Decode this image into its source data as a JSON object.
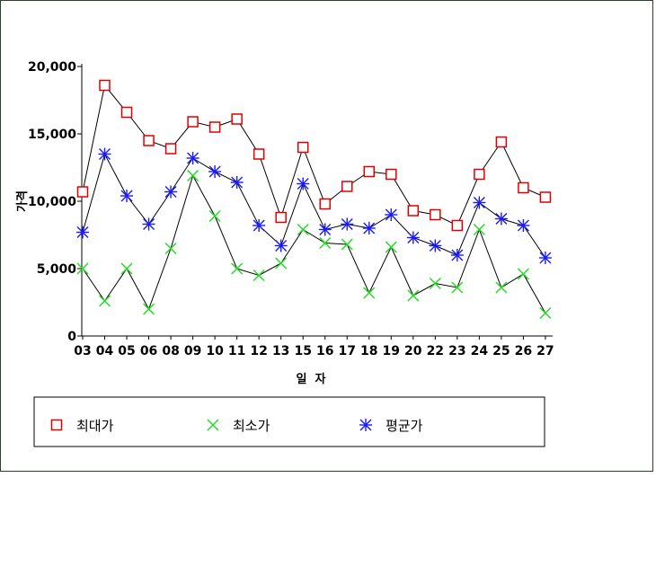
{
  "chart_data": {
    "type": "line",
    "title": "",
    "xlabel": "일  자",
    "ylabel": "가격",
    "categories": [
      "03",
      "04",
      "05",
      "06",
      "08",
      "09",
      "10",
      "11",
      "12",
      "13",
      "15",
      "16",
      "17",
      "18",
      "19",
      "20",
      "22",
      "23",
      "24",
      "25",
      "26",
      "27"
    ],
    "ylim": [
      0,
      20000
    ],
    "yticks": [
      "0",
      "5,000",
      "10,000",
      "15,000",
      "20,000"
    ],
    "ytick_values": [
      0,
      5000,
      10000,
      15000,
      20000
    ],
    "grid": false,
    "legend_position": "bottom",
    "series": [
      {
        "name": "최대가",
        "marker": "square",
        "color": "#e00000",
        "values": [
          10700,
          18600,
          16600,
          14500,
          13900,
          15900,
          15500,
          16100,
          13500,
          8800,
          14000,
          9800,
          11100,
          12200,
          12000,
          9300,
          9000,
          8200,
          12000,
          14400,
          11000,
          10300
        ]
      },
      {
        "name": "최소가",
        "marker": "x",
        "color": "#22dd22",
        "values": [
          5000,
          2600,
          5000,
          2000,
          6500,
          11900,
          8900,
          5000,
          4500,
          5400,
          7900,
          6900,
          6800,
          3200,
          6600,
          3000,
          3900,
          3600,
          7900,
          3600,
          4600,
          1700
        ]
      },
      {
        "name": "평균가",
        "marker": "asterisk",
        "color": "#1a1aff",
        "values": [
          7700,
          13500,
          10400,
          8300,
          10700,
          13200,
          12200,
          11400,
          8200,
          6700,
          11300,
          7900,
          8300,
          8000,
          9000,
          7300,
          6700,
          6000,
          9900,
          8700,
          8200,
          5800
        ]
      }
    ]
  }
}
